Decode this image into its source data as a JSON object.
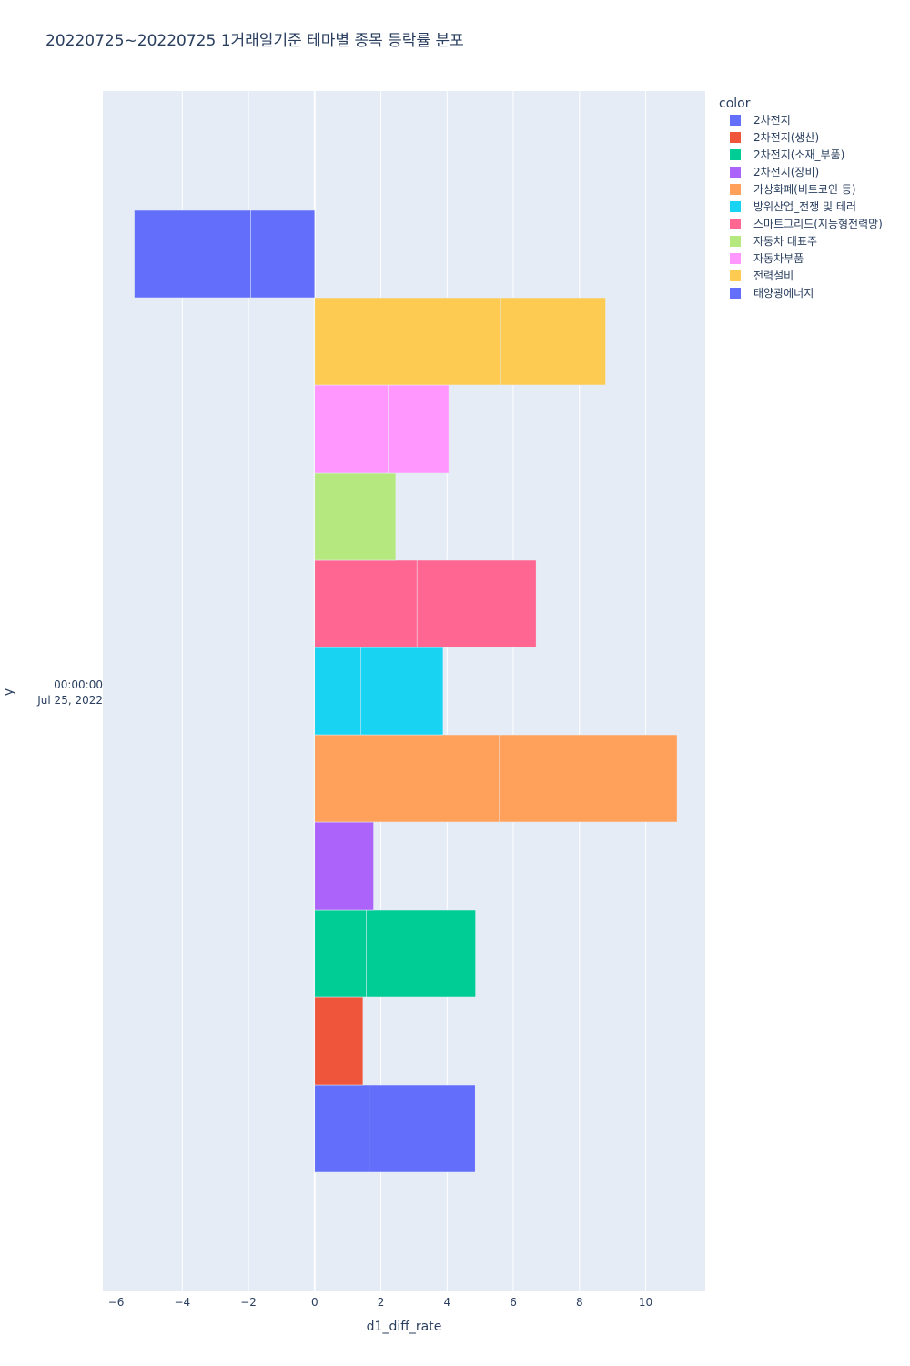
{
  "chart_data": {
    "type": "bar",
    "orientation": "horizontal",
    "barmode": "stacked",
    "title": "20220725~20220725 1거래일기준 테마별 종목 등락률 분포",
    "xlabel": "d1_diff_rate",
    "ylabel": "y",
    "y_category": [
      "00:00:00",
      "Jul 25, 2022"
    ],
    "xlim": [
      -6.4,
      11.8
    ],
    "x_ticks": [
      -6,
      -4,
      -2,
      0,
      2,
      4,
      6,
      8,
      10
    ],
    "x_tick_labels": [
      "−6",
      "−4",
      "−2",
      "0",
      "2",
      "4",
      "6",
      "8",
      "10"
    ],
    "grid": true,
    "legend_title": "color",
    "legend_position": "right",
    "series": [
      {
        "name": "2차전지",
        "color": "#636efa",
        "segments": [
          1.65,
          3.2
        ]
      },
      {
        "name": "2차전지(생산)",
        "color": "#EF553B",
        "segments": [
          1.46
        ]
      },
      {
        "name": "2차전지(소재_부품)",
        "color": "#00cc96",
        "segments": [
          1.56,
          3.3
        ]
      },
      {
        "name": "2차전지(장비)",
        "color": "#ab63fa",
        "segments": [
          1.78
        ]
      },
      {
        "name": "가상화폐(비트코인 등)",
        "color": "#FFA15A",
        "segments": [
          5.58,
          5.37
        ]
      },
      {
        "name": "방위산업_전쟁 및 테러",
        "color": "#19d3f3",
        "segments": [
          1.39,
          2.49
        ]
      },
      {
        "name": "스마트그리드(지능형전력망)",
        "color": "#FF6692",
        "segments": [
          3.09,
          3.6
        ]
      },
      {
        "name": "자동차 대표주",
        "color": "#B6E880",
        "segments": [
          2.45
        ]
      },
      {
        "name": "자동차부품",
        "color": "#FF97FF",
        "segments": [
          2.22,
          1.83
        ]
      },
      {
        "name": "전력설비",
        "color": "#FECB52",
        "segments": [
          5.62,
          3.17
        ]
      },
      {
        "name": "태양광에너지",
        "color": "#636efa",
        "segments": [
          -1.93,
          -3.52
        ]
      }
    ]
  }
}
